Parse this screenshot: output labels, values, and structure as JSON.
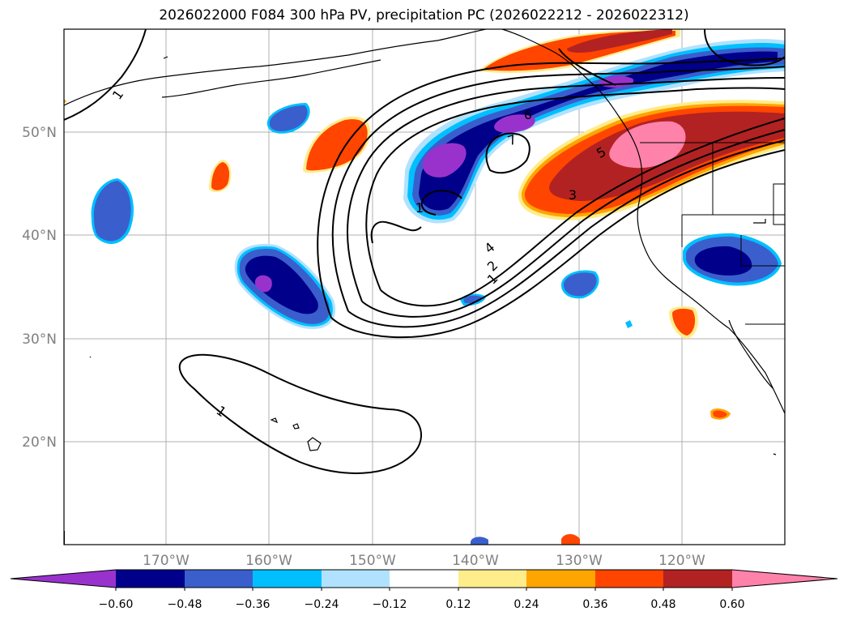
{
  "title": "2026022000 F084 300 hPa PV, precipitation PC (2026022212 - 2026022312)",
  "lon_ticks": [
    "170°W",
    "160°W",
    "150°W",
    "140°W",
    "130°W",
    "120°W"
  ],
  "lat_ticks": [
    "50°N",
    "40°N",
    "30°N",
    "20°N"
  ],
  "contour_labels": [
    "1",
    "1",
    "1",
    "2",
    "3",
    "4",
    "5",
    "6",
    "7",
    "1"
  ],
  "colorbar": {
    "tick_labels": [
      "−0.60",
      "−0.48",
      "−0.36",
      "−0.24",
      "−0.12",
      "0.12",
      "0.24",
      "0.36",
      "0.48",
      "0.60"
    ],
    "colors": [
      "#9932cc",
      "#00008b",
      "#3a5fcd",
      "#00bfff",
      "#b0e2ff",
      "#ffffff",
      "#ffec8b",
      "#ffa500",
      "#ff4500",
      "#b22222",
      "#ff82ab"
    ]
  },
  "colors": {
    "grid": "#b0b0b0",
    "tick_text": "#808080",
    "contour": "#000000"
  }
}
